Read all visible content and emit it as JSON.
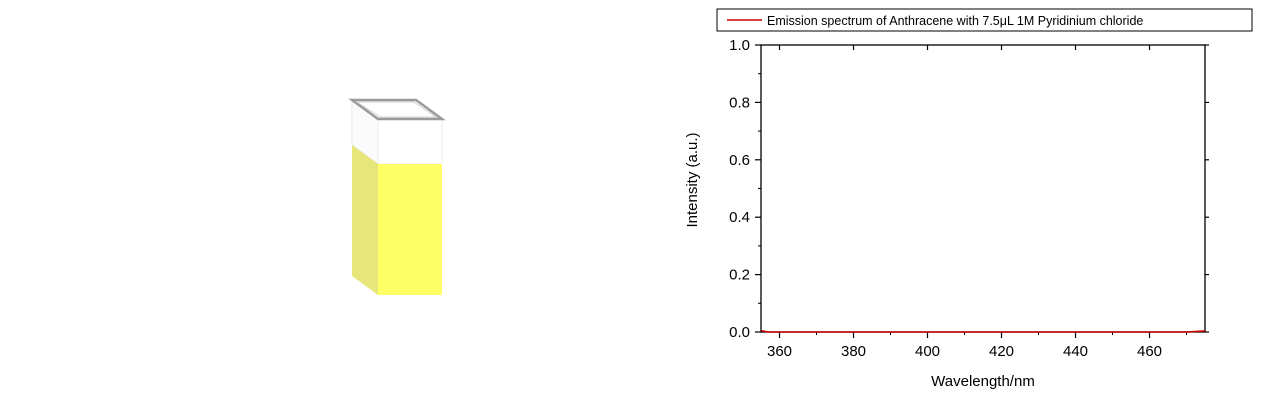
{
  "illustration": {
    "name": "cuvette",
    "liquid_color": "#ffff66",
    "liquid_side_color": "#e6e67a"
  },
  "chart_data": {
    "type": "line",
    "legend": "Emission spectrum of Anthracene with 7.5μL 1M Pyridinium chloride",
    "legend_position": "top",
    "xlabel": "Wavelength/nm",
    "ylabel": "Intensity (a.u.)",
    "xlim": [
      355,
      475
    ],
    "ylim": [
      0,
      1.0
    ],
    "x_ticks": [
      360,
      380,
      400,
      420,
      440,
      460
    ],
    "x_tick_labels": [
      "360",
      "380",
      "400",
      "420",
      "440",
      "460"
    ],
    "y_ticks": [
      0.0,
      0.2,
      0.4,
      0.6,
      0.8,
      1.0
    ],
    "y_tick_labels": [
      "0.0",
      "0.2",
      "0.4",
      "0.6",
      "0.8",
      "1.0"
    ],
    "grid": false,
    "series": [
      {
        "name": "Emission spectrum of Anthracene with 7.5μL 1M Pyridinium chloride",
        "color": "#cc0000",
        "x": [
          355,
          357,
          370,
          400,
          430,
          460,
          470,
          475
        ],
        "y": [
          0.005,
          0.0,
          0.0,
          0.0,
          0.0,
          0.0,
          0.0,
          0.004
        ]
      }
    ]
  }
}
